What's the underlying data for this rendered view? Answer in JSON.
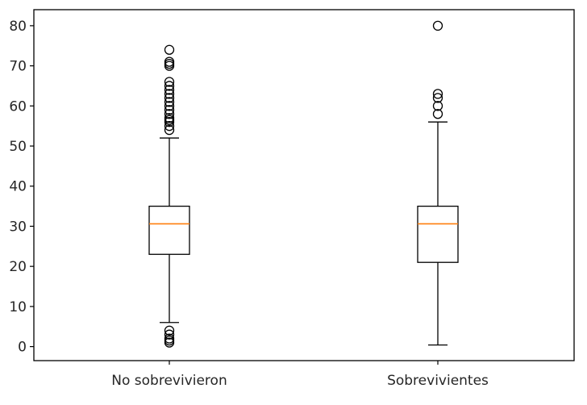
{
  "chart_data": {
    "type": "boxplot",
    "title": "",
    "xlabel": "",
    "ylabel": "",
    "ylim": [
      -3.5,
      84
    ],
    "yticks": [
      0,
      10,
      20,
      30,
      40,
      50,
      60,
      70,
      80
    ],
    "grid": false,
    "median_color": "#ff7f0e",
    "categories": [
      "No sobrevivieron",
      "Sobrevivientes"
    ],
    "boxes": [
      {
        "label": "No sobrevivieron",
        "whisker_low": 6,
        "q1": 23,
        "median": 30.6,
        "q3": 35,
        "whisker_high": 52,
        "fliers": [
          1,
          1.5,
          2,
          3,
          4,
          54,
          55,
          56,
          56.5,
          57,
          58,
          59,
          60,
          61,
          62,
          63,
          64,
          65,
          66,
          70,
          70.5,
          71,
          74
        ]
      },
      {
        "label": "Sobrevivientes",
        "whisker_low": 0.4,
        "q1": 21,
        "median": 30.6,
        "q3": 35,
        "whisker_high": 56,
        "fliers": [
          58,
          60,
          62,
          63,
          80
        ]
      }
    ]
  }
}
